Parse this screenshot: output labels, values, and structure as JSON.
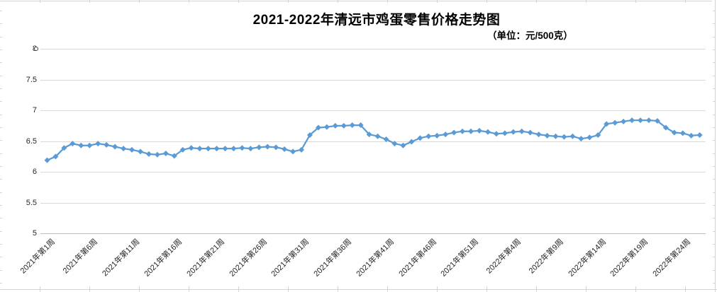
{
  "chart_data": {
    "type": "line",
    "title": "2021-2022年清远市鸡蛋零售价格走势图",
    "unit_label": "（单位：元/500克）",
    "series_name": "鸡蛋零售价格",
    "series_color": "#5B9BD5",
    "marker": "diamond",
    "grid": "horizontal",
    "legend_position": "none",
    "ylim": [
      5,
      8
    ],
    "ytick_step": 0.5,
    "ytick_labels": [
      "8",
      "7.5",
      "7",
      "6.5",
      "6",
      "5.5",
      "5"
    ],
    "xtick_labels": [
      "2021年第1周",
      "2021年第6周",
      "2021年第11周",
      "2021年第16周",
      "2021年第21周",
      "2021年第26周",
      "2021年第31周",
      "2021年第36周",
      "2021年第41周",
      "2021年第46周",
      "2021年第51周",
      "2022年第4周",
      "2022年第9周",
      "2022年第14周",
      "2022年第19周",
      "2022年第24周"
    ],
    "xtick_indices": [
      0,
      5,
      10,
      15,
      20,
      25,
      30,
      35,
      40,
      45,
      50,
      55,
      60,
      65,
      70,
      75
    ],
    "values": [
      6.19,
      6.25,
      6.39,
      6.46,
      6.43,
      6.43,
      6.46,
      6.44,
      6.41,
      6.38,
      6.36,
      6.33,
      6.29,
      6.28,
      6.3,
      6.26,
      6.36,
      6.39,
      6.38,
      6.38,
      6.38,
      6.38,
      6.38,
      6.39,
      6.38,
      6.4,
      6.41,
      6.4,
      6.37,
      6.33,
      6.36,
      6.6,
      6.72,
      6.73,
      6.75,
      6.75,
      6.76,
      6.76,
      6.61,
      6.58,
      6.53,
      6.46,
      6.43,
      6.49,
      6.55,
      6.58,
      6.59,
      6.61,
      6.64,
      6.66,
      6.66,
      6.67,
      6.65,
      6.62,
      6.63,
      6.65,
      6.66,
      6.64,
      6.61,
      6.59,
      6.58,
      6.57,
      6.58,
      6.54,
      6.56,
      6.6,
      6.78,
      6.8,
      6.82,
      6.84,
      6.84,
      6.84,
      6.83,
      6.72,
      6.64,
      6.63,
      6.59,
      6.6
    ]
  }
}
